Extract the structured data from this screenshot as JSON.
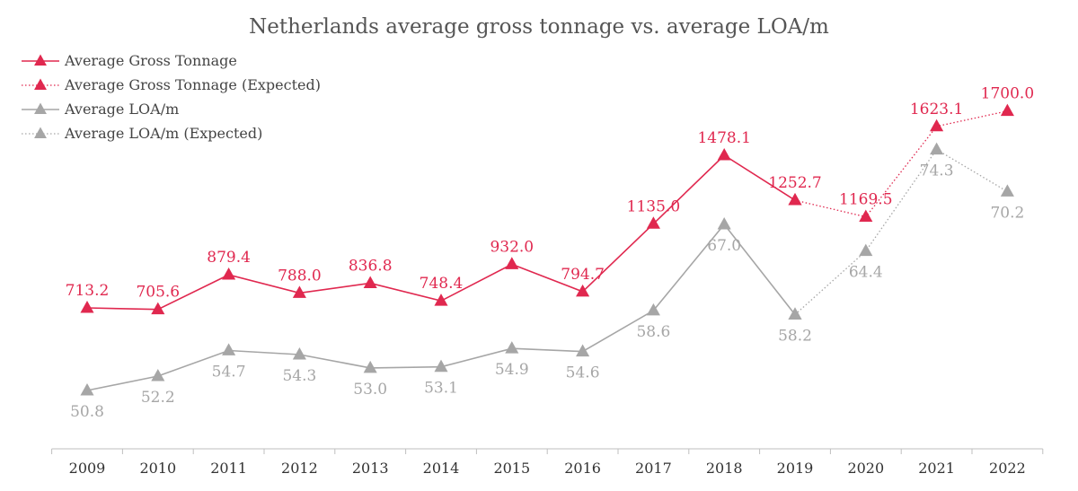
{
  "chart_data": {
    "type": "line",
    "title": "Netherlands average gross tonnage vs. average LOA/m",
    "xlabel": "",
    "ylabel": "",
    "categories": [
      "2009",
      "2010",
      "2011",
      "2012",
      "2013",
      "2014",
      "2015",
      "2016",
      "2017",
      "2018",
      "2019",
      "2020",
      "2021",
      "2022"
    ],
    "legend_position": "top-left",
    "grid": false,
    "series": [
      {
        "name": "Average Gross Tonnage",
        "color": "#e0284f",
        "style": "solid",
        "values": [
          713.2,
          705.6,
          879.4,
          788.0,
          836.8,
          748.4,
          932.0,
          794.7,
          1135.0,
          1478.1,
          1252.7,
          null,
          null,
          null
        ],
        "labels": [
          "713.2",
          "705.6",
          "879.4",
          "788.0",
          "836.8",
          "748.4",
          "932.0",
          "794.7",
          "1135.0",
          "1478.1",
          "1252.7",
          null,
          null,
          null
        ]
      },
      {
        "name": "Average Gross Tonnage (Expected)",
        "color": "#e0284f",
        "style": "dotted",
        "values": [
          null,
          null,
          null,
          null,
          null,
          null,
          null,
          null,
          null,
          null,
          1252.7,
          1169.5,
          1623.1,
          1700.0
        ],
        "labels": [
          null,
          null,
          null,
          null,
          null,
          null,
          null,
          null,
          null,
          null,
          null,
          "1169.5",
          "1623.1",
          "1700.0"
        ]
      },
      {
        "name": "Average LOA/m",
        "color": "#a6a6a6",
        "style": "solid",
        "values": [
          50.8,
          52.2,
          54.7,
          54.3,
          53.0,
          53.1,
          54.9,
          54.6,
          58.6,
          67.0,
          58.2,
          null,
          null,
          null
        ],
        "labels": [
          "50.8",
          "52.2",
          "54.7",
          "54.3",
          "53.0",
          "53.1",
          "54.9",
          "54.6",
          "58.6",
          "67.0",
          "58.2",
          null,
          null,
          null
        ]
      },
      {
        "name": "Average LOA/m (Expected)",
        "color": "#a6a6a6",
        "style": "dotted",
        "values": [
          null,
          null,
          null,
          null,
          null,
          null,
          null,
          null,
          null,
          null,
          58.2,
          64.4,
          74.3,
          70.2
        ],
        "labels": [
          null,
          null,
          null,
          null,
          null,
          null,
          null,
          null,
          null,
          null,
          null,
          "64.4",
          "74.3",
          "70.2"
        ]
      }
    ],
    "scale_note": "Tonnage and LOA/m plotted on separate hidden axes"
  },
  "axes": {
    "tonnage": {
      "min": 0,
      "max": 2040
    },
    "loa": {
      "min": 33,
      "max": 86.5
    }
  }
}
